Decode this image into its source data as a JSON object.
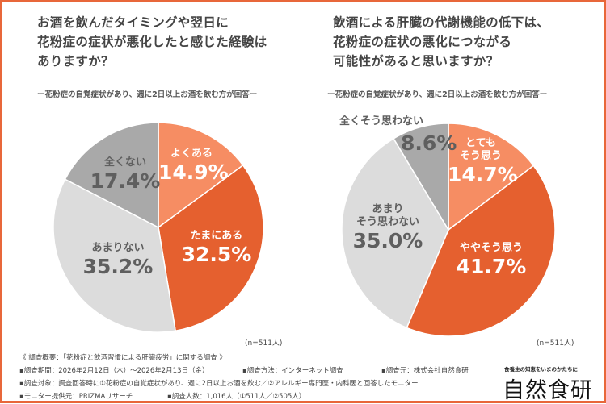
{
  "chart_data": [
    {
      "type": "pie",
      "title": "お酒を飲んだタイミングや翌日に花粉症の症状が悪化したと感じた経験はありますか？",
      "title_lines": [
        "お酒を飲んだタイミングや翌日に",
        "花粉症の症状が悪化したと感じた経験は",
        "ありますか？"
      ],
      "subtitle": "ー花粉症の自覚症状があり、週に2日以上お酒を飲む方が回答ー",
      "note": "(n=511人)",
      "slices": [
        {
          "label": "よくある",
          "value": 14.9,
          "display": "14.9%",
          "color": "#f68d63"
        },
        {
          "label": "たまにある",
          "value": 32.5,
          "display": "32.5%",
          "color": "#e5602f"
        },
        {
          "label": "あまりない",
          "value": 35.2,
          "display": "35.2%",
          "color": "#dcdcdc"
        },
        {
          "label": "全くない",
          "value": 17.4,
          "display": "17.4%",
          "color": "#a9a9a9"
        }
      ]
    },
    {
      "type": "pie",
      "title": "飲酒による肝臓の代謝機能の低下は、花粉症の症状の悪化につながる可能性があると思いますか？",
      "title_lines": [
        "飲酒による肝臓の代謝機能の低下は、",
        "花粉症の症状の悪化につながる",
        "可能性があると思いますか？"
      ],
      "subtitle": "ー花粉症の自覚症状があり、週に2日以上お酒を飲む方が回答ー",
      "note": "(n=511人)",
      "slices": [
        {
          "label": "とてもそう思う",
          "label_lines": [
            "とても",
            "そう思う"
          ],
          "value": 14.7,
          "display": "14.7%",
          "color": "#f68d63"
        },
        {
          "label": "ややそう思う",
          "value": 41.7,
          "display": "41.7%",
          "color": "#e5602f"
        },
        {
          "label": "あまりそう思わない",
          "label_lines": [
            "あまり",
            "そう思わない"
          ],
          "value": 35.0,
          "display": "35.0%",
          "color": "#dcdcdc"
        },
        {
          "label": "全くそう思わない",
          "value": 8.6,
          "display": "8.6%",
          "color": "#a9a9a9"
        }
      ]
    }
  ],
  "footer": {
    "summary": "《 調査概要：「花粉症と飲酒習慣による肝臓疲労」に関する調査 》",
    "period": "▪調査期間：2026年2月12日（木）～2026年2月13日（金）",
    "method": "▪調査方法：インターネット調査",
    "source": "▪調査元：株式会社自然食研",
    "target": "▪調査対象：調査回答時に①花粉症の自覚症状があり、週に2日以上お酒を飲む／②アレルギー専門医・内科医と回答したモニター",
    "provider": "▪モニター提供元：PRIZMAリサーチ",
    "count": "▪調査人数：1,016人（①511人／②505人）"
  },
  "brand": {
    "tagline": "食養生の知恵をいまのかたちに",
    "name": "自然食研"
  },
  "border_color": "#e8673a"
}
